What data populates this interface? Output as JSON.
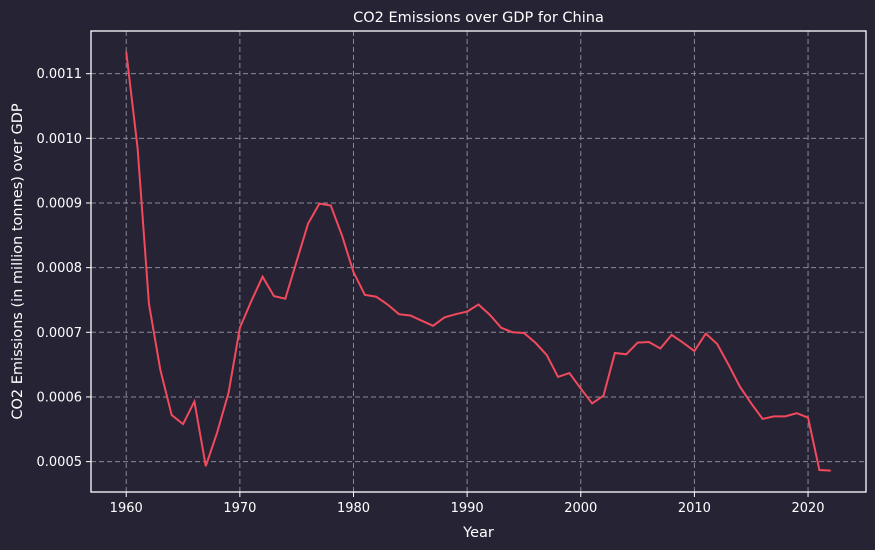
{
  "chart_data": {
    "type": "line",
    "title": "CO2 Emissions over GDP for China",
    "xlabel": "Year",
    "ylabel": "CO2 Emissions (in million tonnes) over GDP",
    "xlim": [
      1956.9,
      2025.1
    ],
    "ylim": [
      0.000453,
      0.001166
    ],
    "x_ticks": [
      1960,
      1970,
      1980,
      1990,
      2000,
      2010,
      2020
    ],
    "x_tick_labels": [
      "1960",
      "1970",
      "1980",
      "1990",
      "2000",
      "2010",
      "2020"
    ],
    "y_ticks": [
      0.0005,
      0.0006,
      0.0007,
      0.0008,
      0.0009,
      0.001,
      0.0011
    ],
    "y_tick_labels": [
      "0.0005",
      "0.0006",
      "0.0007",
      "0.0008",
      "0.0009",
      "0.0010",
      "0.0011"
    ],
    "grid": true,
    "colors": {
      "background": "#262335",
      "line": "#f2495c",
      "grid": "#8a8896",
      "text": "#ffffff"
    },
    "series": [
      {
        "x": [
          1960,
          1961,
          1962,
          1963,
          1964,
          1965,
          1966,
          1967,
          1968,
          1969,
          1970,
          1971,
          1972,
          1973,
          1974,
          1975,
          1976,
          1977,
          1978,
          1979,
          1980,
          1981,
          1982,
          1983,
          1984,
          1985,
          1986,
          1987,
          1988,
          1989,
          1990,
          1991,
          1992,
          1993,
          1994,
          1995,
          1996,
          1997,
          1998,
          1999,
          2000,
          2001,
          2002,
          2003,
          2004,
          2005,
          2006,
          2007,
          2008,
          2009,
          2010,
          2011,
          2012,
          2013,
          2014,
          2015,
          2016,
          2017,
          2018,
          2019,
          2020,
          2021,
          2022
        ],
        "values": [
          0.001134,
          0.000985,
          0.000744,
          0.000642,
          0.000572,
          0.000558,
          0.000593,
          0.000493,
          0.000545,
          0.000606,
          0.000707,
          0.000748,
          0.000786,
          0.000756,
          0.000752,
          0.00081,
          0.000868,
          0.000899,
          0.000896,
          0.000849,
          0.000793,
          0.000758,
          0.000755,
          0.000743,
          0.000728,
          0.000726,
          0.000718,
          0.00071,
          0.000723,
          0.000728,
          0.000732,
          0.000743,
          0.000727,
          0.000707,
          0.0007,
          0.000699,
          0.000684,
          0.000665,
          0.000631,
          0.000637,
          0.000613,
          0.00059,
          0.000602,
          0.000668,
          0.000666,
          0.000684,
          0.000685,
          0.000675,
          0.000696,
          0.000684,
          0.000671,
          0.000698,
          0.000682,
          0.00065,
          0.000616,
          0.00059,
          0.000566,
          0.00057,
          0.00057,
          0.000575,
          0.000568,
          0.000487,
          0.000486
        ]
      }
    ]
  }
}
